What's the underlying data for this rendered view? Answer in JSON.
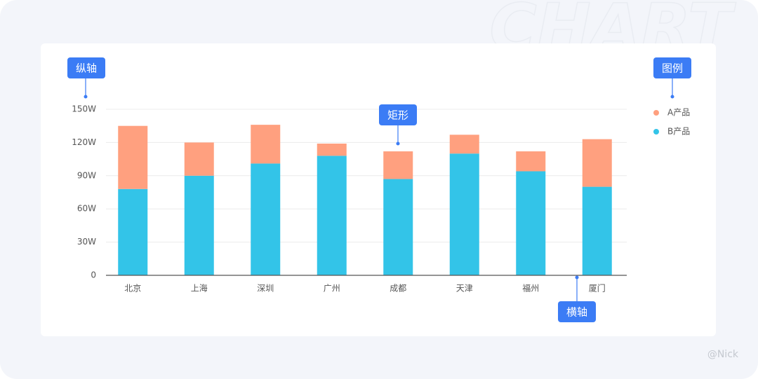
{
  "chart_data": {
    "type": "stacked_bar",
    "categories": [
      "北京",
      "上海",
      "深圳",
      "广州",
      "成都",
      "天津",
      "福州",
      "厦门"
    ],
    "series": [
      {
        "name": "A产品",
        "color": "#ffa07f",
        "values": [
          57,
          30,
          35,
          11,
          25,
          17,
          18,
          43
        ]
      },
      {
        "name": "B产品",
        "color": "#33c4e8",
        "values": [
          78,
          90,
          101,
          108,
          87,
          110,
          94,
          80
        ]
      }
    ],
    "ylim": [
      0,
      150
    ],
    "yticks": [
      0,
      {
        "value": 30,
        "label": "30W"
      },
      {
        "value": 60,
        "label": "60W"
      },
      {
        "value": 90,
        "label": "90W"
      },
      {
        "value": 120,
        "label": "120W"
      },
      {
        "value": 150,
        "label": "150W"
      }
    ],
    "grid": true,
    "legend": "right",
    "annotations": [
      "纵轴",
      "图例",
      "矩形",
      "横轴"
    ],
    "watermark": "@Nick",
    "background_text": "CHART"
  }
}
